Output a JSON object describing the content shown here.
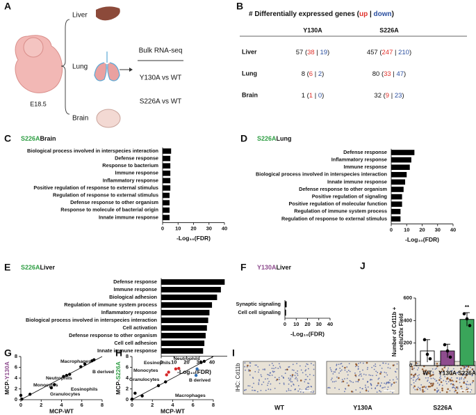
{
  "schematic": {
    "label": "A",
    "organs": [
      "Liver",
      "Lung",
      "Brain"
    ],
    "stage": "E18.5",
    "method": "Bulk RNA-seq",
    "comparisons": [
      "Y130A vs WT",
      "S226A vs WT"
    ]
  },
  "table": {
    "label": "B",
    "title": [
      "# Differentially expressed genes (",
      "up",
      " | ",
      "down",
      ")"
    ],
    "up_color": "#e0302a",
    "down_color": "#2b4fa0",
    "columns": [
      "Y130A",
      "S226A"
    ],
    "rows": [
      {
        "name": "Liver",
        "cells": [
          [
            "57 (",
            "38",
            " | ",
            "19",
            ")"
          ],
          [
            "457 (",
            "247",
            " | ",
            "210",
            ")"
          ]
        ]
      },
      {
        "name": "Lung",
        "cells": [
          [
            "8 (",
            "6",
            " | ",
            "2",
            ")"
          ],
          [
            "80 (",
            "33",
            " | ",
            "47",
            ")"
          ]
        ]
      },
      {
        "name": "Brain",
        "cells": [
          [
            "1 (",
            "1",
            " | ",
            "0",
            ")"
          ],
          [
            "32 (",
            "9",
            " | ",
            "23",
            ")"
          ]
        ]
      }
    ]
  },
  "images": {
    "label": "I",
    "side_label": "IHC: Cd11b",
    "captions": [
      "WT",
      "Y130A",
      "S226A"
    ]
  },
  "chart_data": [
    {
      "label": "C",
      "type": "hbar",
      "title": [
        "S226A",
        "Brain"
      ],
      "title_color": "#2f9e44",
      "color": "#000000",
      "categories": [
        "Biological process involved in interspecies interaction",
        "Defense response",
        "Response to bacterium",
        "Immune response",
        "Inflammatory response",
        "Positive regulation of response to external stimulus",
        "Regulation of response to external stimulus",
        "Defense response to other organism",
        "Response to molecule of bacterial origin",
        "Innate immune response"
      ],
      "values": [
        5.5,
        5,
        5,
        5,
        5,
        5,
        4.5,
        4.5,
        4.5,
        4.5
      ],
      "xlim": [
        0,
        40
      ],
      "xticks": [
        0,
        10,
        20,
        30,
        40
      ],
      "xlabel": "-Log₁₀(FDR)"
    },
    {
      "label": "D",
      "type": "hbar",
      "title": [
        "S226A",
        "Lung"
      ],
      "title_color": "#2f9e44",
      "color": "#000000",
      "categories": [
        "Defense response",
        "Inflammatory response",
        "Immune response",
        "Biological process involved in interspecies interaction",
        "Innate immune response",
        "Defense response to other organism",
        "Positive regulation of signaling",
        "Positive regulation of molecular function",
        "Regulation of immune system process",
        "Regulation of response to external stimulus"
      ],
      "values": [
        15,
        13,
        12,
        10,
        9,
        8,
        7,
        7,
        6,
        6
      ],
      "xlim": [
        0,
        40
      ],
      "xticks": [
        0,
        10,
        20,
        30,
        40
      ],
      "xlabel": "-Log₁₀(FDR)"
    },
    {
      "label": "E",
      "type": "hbar",
      "title": [
        "S226A",
        "Liver"
      ],
      "title_color": "#2f9e44",
      "color": "#000000",
      "categories": [
        "Defense response",
        "Immune response",
        "Biological adhesion",
        "Regulation of immune system process",
        "Inflammatory response",
        "Biological process involved in interspecies interaction",
        "Cell activation",
        "Defense response to other organism",
        "Cell cell adhesion",
        "Innate immune response"
      ],
      "values": [
        50,
        47,
        44,
        40,
        38,
        37,
        36,
        35,
        34,
        33
      ],
      "xlim": [
        0,
        52
      ],
      "xticks": [
        0,
        10,
        20,
        30,
        40
      ],
      "xlabel": "-Log₁₀(FDR)"
    },
    {
      "label": "F",
      "type": "hbar",
      "title": [
        "Y130A",
        "Liver"
      ],
      "title_color": "#8e4c8e",
      "color": "#000000",
      "categories": [
        "Synaptic signaling",
        "Cell cell signaling"
      ],
      "values": [
        1.5,
        1
      ],
      "xlim": [
        0,
        40
      ],
      "xticks": [
        0,
        10,
        20,
        30,
        40
      ],
      "xlabel": "-Log₁₀(FDR)"
    },
    {
      "label": "G",
      "type": "scatter",
      "xlabel": "MCP-WT",
      "ylabel": [
        "MCP-",
        "Y130A"
      ],
      "ylabel_color": "#8e4c8e",
      "xlim": [
        0,
        8
      ],
      "ylim": [
        0,
        8
      ],
      "xticks": [
        0,
        2,
        4,
        6,
        8
      ],
      "yticks": [
        0,
        2,
        4,
        6,
        8
      ],
      "series": [
        {
          "color": "#000000",
          "x": [
            0,
            0.1,
            0.9,
            3.0,
            3.3,
            4.2,
            4.5,
            4.8,
            5.9,
            6.3,
            7.0,
            7.2
          ],
          "y": [
            0.8,
            0.1,
            1.0,
            2.2,
            2.8,
            4.3,
            4.5,
            4.7,
            6.1,
            6.6,
            7.2,
            7.4
          ]
        }
      ],
      "annotations": [
        "Macrophages",
        "B derived",
        "Neutrophils",
        "Monocytes",
        "Eosinophils",
        "Granulocytes"
      ]
    },
    {
      "label": "H",
      "type": "scatter",
      "xlabel": "MCP-WT",
      "ylabel": [
        "MCP-",
        "S226A"
      ],
      "ylabel_color": "#2f9e44",
      "xlim": [
        0,
        8
      ],
      "ylim": [
        0,
        8
      ],
      "xticks": [
        0,
        2,
        4,
        6,
        8
      ],
      "yticks": [
        0,
        2,
        4,
        6,
        8
      ],
      "series": [
        {
          "color": "#000000",
          "x": [
            0,
            0.3,
            1.0,
            2.6,
            3.3,
            6.8,
            7.1
          ],
          "y": [
            0.1,
            1.2,
            0.7,
            2.6,
            3.3,
            6.9,
            7.1
          ]
        },
        {
          "color": "#d62728",
          "x": [
            3.4,
            3.6,
            4.3,
            4.6
          ],
          "y": [
            4.6,
            5.1,
            5.7,
            5.8
          ]
        },
        {
          "color": "#2f6fb5",
          "x": [
            6.3,
            6.4
          ],
          "y": [
            4.5,
            5.7
          ]
        }
      ],
      "annotations": [
        "Eosinophils",
        "Neutrophils",
        "Monocytes",
        "Granulocytes",
        "B derived",
        "Macrophages"
      ]
    },
    {
      "label": "J",
      "type": "bar",
      "categories": [
        "WT",
        "Y130A",
        "S226A"
      ],
      "values": [
        130,
        130,
        410
      ],
      "errors": [
        100,
        60,
        60
      ],
      "colors": [
        "#ffffff",
        "#8e4c8e",
        "#3aa55a"
      ],
      "points": [
        [
          230,
          100,
          60
        ],
        [
          185,
          130,
          75
        ],
        [
          460,
          415,
          355
        ]
      ],
      "ylim": [
        0,
        600
      ],
      "yticks": [
        0,
        200,
        400,
        600
      ],
      "ylabel": [
        "Number of Cd11b +",
        "cells/20x Field"
      ],
      "annotation": "**"
    }
  ]
}
